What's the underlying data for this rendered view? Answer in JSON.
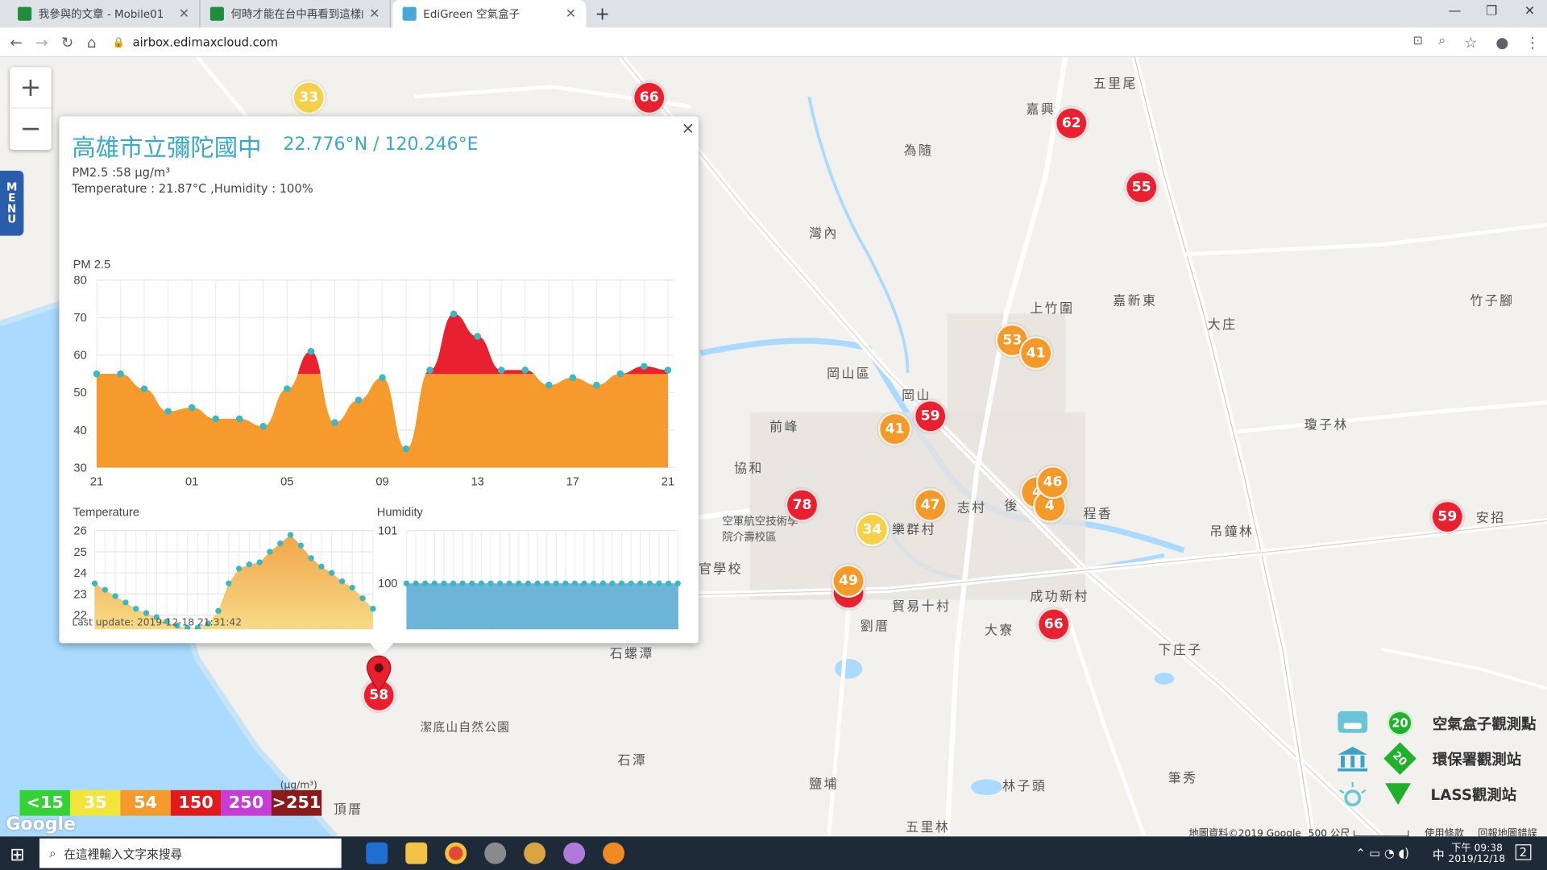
{
  "browser": {
    "tabs": [
      {
        "label": "我參與的文章 - Mobile01",
        "active": false
      },
      {
        "label": "何時才能在台中再看到這樣的藍天",
        "active": false
      },
      {
        "label": "EdiGreen 空氣盒子",
        "active": true
      }
    ],
    "url": "airbox.edimaxcloud.com"
  },
  "map": {
    "places": [
      "五里尾",
      "嘉興",
      "為隨",
      "灣內",
      "上竹圍",
      "嘉新東",
      "大庄",
      "竹子腳",
      "岡山區",
      "岡山",
      "前峰",
      "協和",
      "空軍航空技術學院介壽校區",
      "樂群村",
      "志村",
      "後",
      "程香",
      "吊鐘林",
      "安招",
      "瓊子林",
      "貿易十村",
      "成功新村",
      "大寮",
      "劉厝",
      "石螺潭",
      "下庄子",
      "潔底山自然公園",
      "石潭",
      "林子頭",
      "鹽埔",
      "頂厝",
      "五里林",
      "筆秀",
      "官學校"
    ],
    "markers": [
      {
        "value": "33",
        "level": "yellow"
      },
      {
        "value": "66",
        "level": "red"
      },
      {
        "value": "62",
        "level": "red"
      },
      {
        "value": "55",
        "level": "red"
      },
      {
        "value": "53",
        "level": "orange"
      },
      {
        "value": "41",
        "level": "orange"
      },
      {
        "value": "59",
        "level": "red"
      },
      {
        "value": "41",
        "level": "orange"
      },
      {
        "value": "46",
        "level": "orange"
      },
      {
        "value": "4",
        "level": "orange"
      },
      {
        "value": "4",
        "level": "orange"
      },
      {
        "value": "47",
        "level": "orange"
      },
      {
        "value": "78",
        "level": "red"
      },
      {
        "value": "34",
        "level": "yellow"
      },
      {
        "value": "49",
        "level": "orange"
      },
      {
        "value": "66",
        "level": "red"
      },
      {
        "value": "59",
        "level": "red"
      },
      {
        "value": "58",
        "level": "red"
      }
    ]
  },
  "controls": {
    "zoom_in": "+",
    "zoom_out": "−",
    "menu": [
      "M",
      "E",
      "N",
      "U"
    ]
  },
  "popup": {
    "title": "高雄市立彌陀國中",
    "coords": "22.776°N / 120.246°E",
    "pm_line": "PM2.5 :58 μg/m³",
    "temp_line": "Temperature : 21.87°C ,Humidity : 100%",
    "last_update": "Last update: 2019-12-18 21:31:42",
    "close": "×"
  },
  "chart_data": [
    {
      "type": "area",
      "title": "PM 2.5",
      "x": [
        "21",
        "",
        "",
        "",
        "01",
        "",
        "",
        "",
        "05",
        "",
        "",
        "",
        "09",
        "",
        "",
        "",
        "13",
        "",
        "",
        "",
        "17",
        "",
        "",
        "",
        "21"
      ],
      "xticks": [
        "21",
        "01",
        "05",
        "09",
        "13",
        "17",
        "21"
      ],
      "values": [
        55,
        55,
        51,
        45,
        46,
        43,
        43,
        41,
        51,
        61,
        42,
        48,
        54,
        35,
        56,
        71,
        65,
        56,
        56,
        52,
        54,
        52,
        55,
        57,
        56
      ],
      "ylim": [
        30,
        80
      ],
      "yticks": [
        30,
        40,
        50,
        60,
        70,
        80
      ],
      "threshold": 55,
      "colors": {
        "below": "#f79a2e",
        "above": "#e8202f",
        "point": "#3bb8c0"
      }
    },
    {
      "type": "area",
      "title": "Temperature",
      "values": [
        23.5,
        23.2,
        22.9,
        22.6,
        22.3,
        22.1,
        21.9,
        21.7,
        21.5,
        21.4,
        21.4,
        21.6,
        22.2,
        23.5,
        24.2,
        24.4,
        24.5,
        25.0,
        25.4,
        25.8,
        25.3,
        24.7,
        24.3,
        24.0,
        23.6,
        23.3,
        22.8,
        22.3
      ],
      "ylim": [
        21,
        26
      ],
      "yticks": [
        21,
        22,
        23,
        24,
        25,
        26
      ],
      "colors": {
        "fill": "#f3c262",
        "point": "#3bb8c0"
      }
    },
    {
      "type": "bar",
      "title": "Humidity",
      "values": [
        100,
        100,
        100,
        100,
        100,
        100,
        100,
        100,
        100,
        100,
        100,
        100,
        100,
        100,
        100,
        100,
        100,
        100,
        100,
        100,
        100,
        100,
        100,
        100,
        100,
        100,
        100,
        100,
        100,
        100
      ],
      "ylim": [
        99,
        101
      ],
      "yticks": [
        99,
        100,
        101
      ],
      "colors": {
        "fill": "#6cb4d8",
        "point": "#3bb8c0"
      }
    }
  ],
  "legend": {
    "levels": [
      {
        "label": "<15",
        "color": "#35d235"
      },
      {
        "label": "35",
        "color": "#f1e637"
      },
      {
        "label": "54",
        "color": "#f59b2b"
      },
      {
        "label": "150",
        "color": "#e31a1c"
      },
      {
        "label": "250",
        "color": "#c83bd6"
      },
      {
        "label": ">251",
        "color": "#8b1a1a"
      }
    ],
    "unit": "(μg/m³)",
    "stations": [
      {
        "label": "空氣盒子觀測點",
        "badge": "20",
        "icon": "airbox-icon"
      },
      {
        "label": "環保署觀測站",
        "badge": "20",
        "icon": "epa-building-icon"
      },
      {
        "label": "LASS觀測站",
        "badge": "20",
        "icon": "lass-sun-icon"
      }
    ]
  },
  "attribution": {
    "data": "地圖資料©2019 Google",
    "scale": "500 公尺",
    "terms": "使用條款",
    "report": "回報地圖錯誤",
    "logo": "Google"
  },
  "taskbar": {
    "search_placeholder": "在這裡輸入文字來搜尋",
    "time": "下午 09:38",
    "date": "2019/12/18",
    "ime": "中",
    "notif": "2"
  }
}
